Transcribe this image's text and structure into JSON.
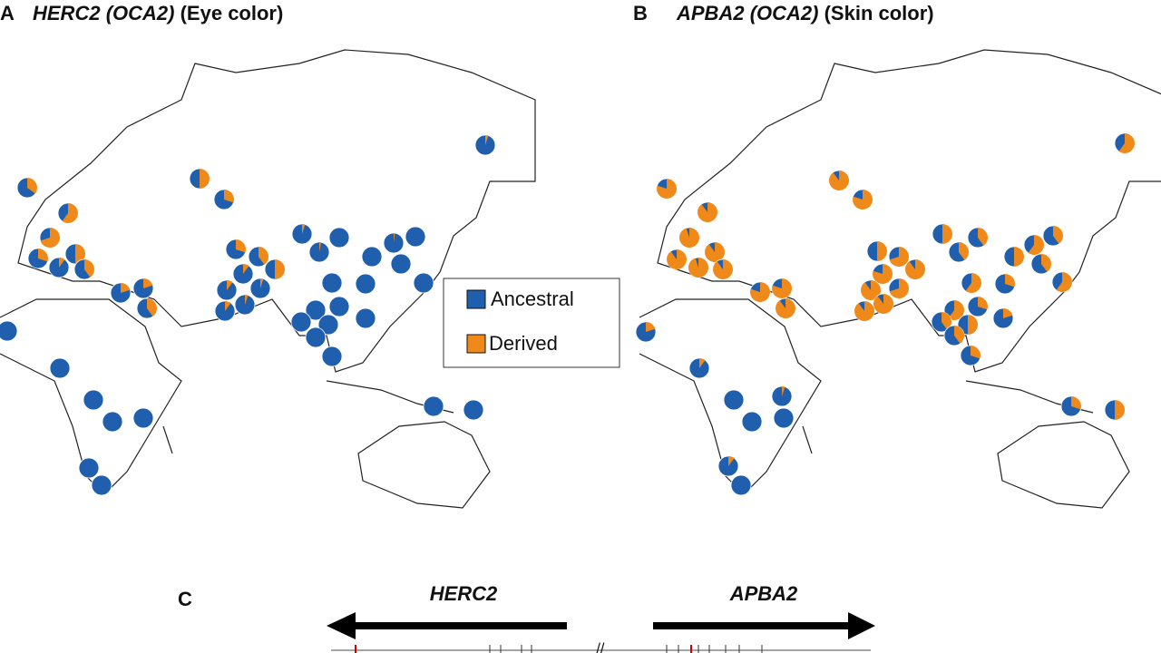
{
  "panels": [
    {
      "label": "A",
      "gene": "HERC2",
      "locus": "(OCA2)",
      "trait": "(Eye color)",
      "derived_frequency": [
        0.05,
        0.35,
        0.5,
        0.3,
        0.6,
        0.7,
        0.3,
        0.1,
        0.5,
        0.4,
        0.2,
        0.2,
        0.4,
        0.3,
        0.4,
        0.5,
        0.1,
        0.1,
        0.05,
        0.05,
        0.1,
        0.05,
        0.03,
        0,
        0.02,
        0,
        0,
        0,
        0,
        0,
        0,
        0,
        0,
        0,
        0,
        0,
        0,
        0,
        0,
        0,
        0,
        0,
        0,
        0,
        0,
        0,
        0
      ]
    },
    {
      "label": "B",
      "gene": "APBA2",
      "locus": "(OCA2)",
      "trait": "(Skin color)",
      "derived_frequency": [
        0.6,
        0.8,
        0.9,
        0.8,
        0.9,
        0.95,
        0.9,
        0.95,
        0.9,
        0.9,
        0.8,
        0.8,
        0.9,
        0.5,
        0.7,
        0.9,
        0.8,
        0.9,
        0.7,
        0.9,
        0.9,
        0.5,
        0.4,
        0.4,
        0.6,
        0.4,
        0.5,
        0.4,
        0.6,
        0.3,
        0.6,
        0.6,
        0.3,
        0.4,
        0.5,
        0.2,
        0.4,
        0.3,
        0.2,
        0.1,
        0,
        0,
        0.05,
        0,
        0.1,
        0,
        0.3,
        0.5
      ]
    }
  ],
  "legend": {
    "ancestral": "Ancestral",
    "derived": "Derived"
  },
  "panel_c": {
    "label": "C",
    "left_gene": "HERC2",
    "right_gene": "APBA2"
  }
}
